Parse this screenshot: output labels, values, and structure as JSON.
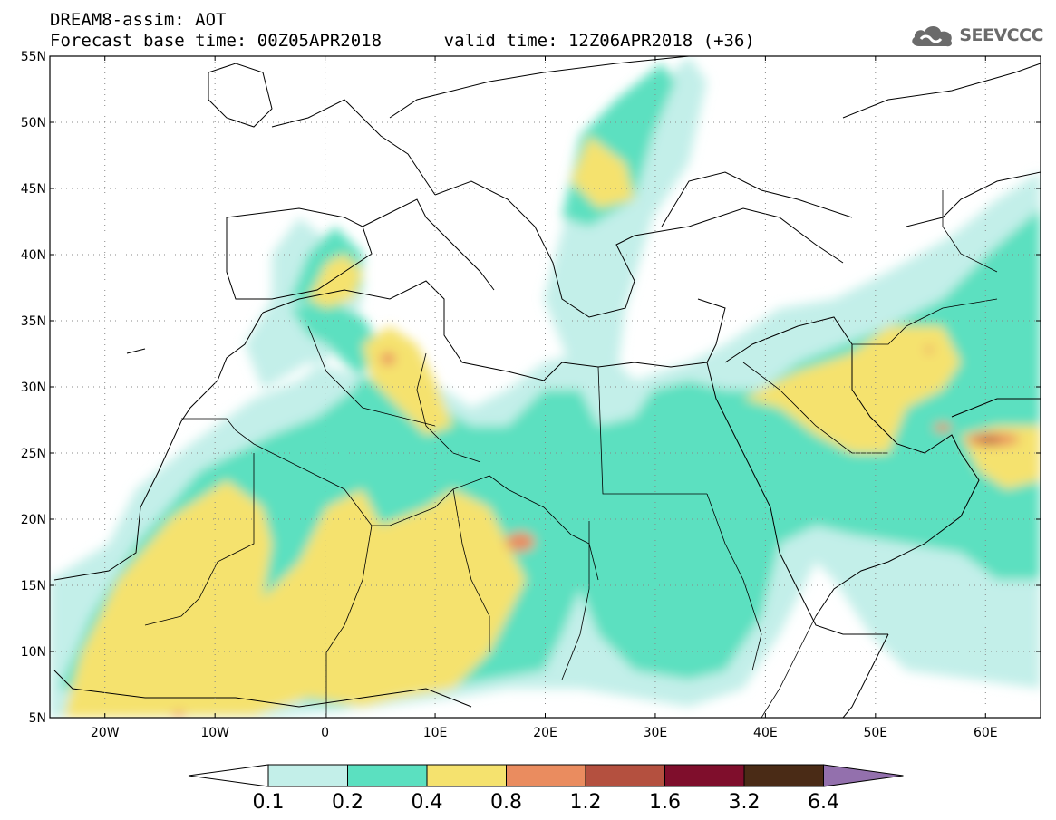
{
  "header": {
    "title_line1": "DREAM8-assim: AOT",
    "title_line2": "Forecast base time: 00Z05APR2018      valid time: 12Z06APR2018 (+36)"
  },
  "logo": {
    "text": "SEEVCCC",
    "icon": "cloud-icon",
    "color": "#6b6b6b"
  },
  "map": {
    "lon_range": [
      -25,
      65
    ],
    "lat_range": [
      5,
      55
    ],
    "lat_ticks": [
      {
        "value": 55,
        "label": "55N"
      },
      {
        "value": 50,
        "label": "50N"
      },
      {
        "value": 45,
        "label": "45N"
      },
      {
        "value": 40,
        "label": "40N"
      },
      {
        "value": 35,
        "label": "35N"
      },
      {
        "value": 30,
        "label": "30N"
      },
      {
        "value": 25,
        "label": "25N"
      },
      {
        "value": 20,
        "label": "20N"
      },
      {
        "value": 15,
        "label": "15N"
      },
      {
        "value": 10,
        "label": "10N"
      },
      {
        "value": 5,
        "label": "5N"
      }
    ],
    "lon_ticks": [
      {
        "value": -20,
        "label": "20W"
      },
      {
        "value": -10,
        "label": "10W"
      },
      {
        "value": 0,
        "label": "0"
      },
      {
        "value": 10,
        "label": "10E"
      },
      {
        "value": 20,
        "label": "20E"
      },
      {
        "value": 30,
        "label": "30E"
      },
      {
        "value": 40,
        "label": "40E"
      },
      {
        "value": 50,
        "label": "50E"
      },
      {
        "value": 60,
        "label": "60E"
      }
    ],
    "grid": true
  },
  "colorbar": {
    "levels": [
      "0.1",
      "0.2",
      "0.4",
      "0.8",
      "1.2",
      "1.6",
      "3.2",
      "6.4"
    ],
    "colors": [
      "#c3efe9",
      "#5be0c0",
      "#f5e26e",
      "#ea8c5f",
      "#b4503f",
      "#7f0e2c",
      "#4a2b16",
      "#9370ad"
    ],
    "under_color": "#ffffff"
  }
}
